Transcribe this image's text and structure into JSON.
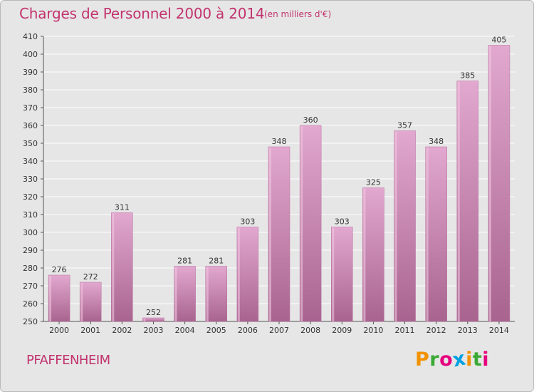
{
  "header": {
    "title": "Charges de Personnel 2000 à 2014",
    "subtitle": "(en milliers d'€)"
  },
  "footer": {
    "commune": "PFAFFENHEIM",
    "logo_letters": [
      "P",
      "r",
      "o",
      "x",
      "i",
      "t",
      "i"
    ],
    "logo_colors": [
      "#f39200",
      "#3aa935",
      "#e6007e",
      "#00a0e3",
      "#f39200",
      "#3aa935",
      "#e6007e"
    ]
  },
  "colors": {
    "bar": "#cc7fb0",
    "bar_light": "#e2a8cf",
    "bar_dark": "#a8648f",
    "title": "#c2336e",
    "background": "#e6e6e6",
    "grid": "#ffffff"
  },
  "chart_data": {
    "type": "bar",
    "title": "Charges de Personnel 2000 à 2014",
    "subtitle": "(en milliers d'€)",
    "categories": [
      "2000",
      "2001",
      "2002",
      "2003",
      "2004",
      "2005",
      "2006",
      "2007",
      "2008",
      "2009",
      "2010",
      "2011",
      "2012",
      "2013",
      "2014"
    ],
    "values": [
      276,
      272,
      311,
      252,
      281,
      281,
      303,
      348,
      360,
      303,
      325,
      357,
      348,
      385,
      405
    ],
    "xlabel": "",
    "ylabel": "",
    "ylim": [
      250,
      410
    ],
    "yticks": [
      250,
      260,
      270,
      280,
      290,
      300,
      310,
      320,
      330,
      340,
      350,
      360,
      370,
      380,
      390,
      400,
      410
    ],
    "grid": true,
    "legend": "none"
  }
}
